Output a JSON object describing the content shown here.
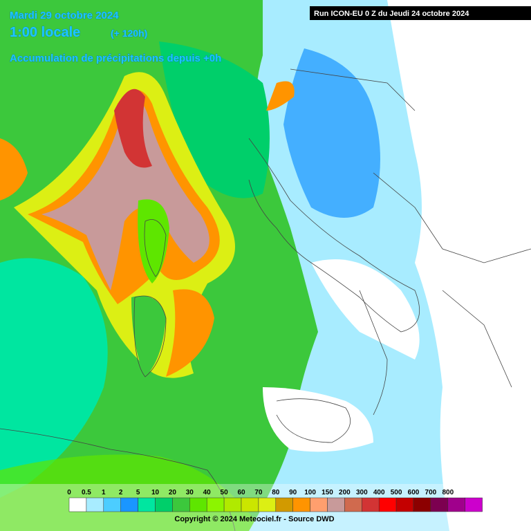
{
  "header": {
    "date": "Mardi 29 octobre 2024",
    "time": "1:00 locale",
    "lead": "(+ 120h)",
    "subtitle": "Accumulation de précipitations depuis +0h",
    "run": "Run ICON-EU 0 Z du Jeudi 24 octobre 2024"
  },
  "legend": {
    "labels": [
      0,
      0.5,
      1,
      2,
      5,
      10,
      20,
      30,
      40,
      50,
      60,
      70,
      80,
      90,
      100,
      150,
      200,
      300,
      400,
      500,
      600,
      700,
      800
    ],
    "colors": [
      "#ffffff",
      "#a8ecff",
      "#4ccdff",
      "#1a96ff",
      "#00e6a0",
      "#00cf6a",
      "#3cc83c",
      "#5ee600",
      "#8cf500",
      "#b0ea00",
      "#cbe600",
      "#dcef14",
      "#d29a00",
      "#ff9400",
      "#ff9f6e",
      "#c89a9a",
      "#d06a4e",
      "#d23434",
      "#ff0000",
      "#c40000",
      "#8c0000",
      "#7c0050",
      "#a0008c",
      "#cc00cc"
    ]
  },
  "footer": {
    "copyright": "Copyright © 2024 Meteociel.fr - Source DWD"
  }
}
